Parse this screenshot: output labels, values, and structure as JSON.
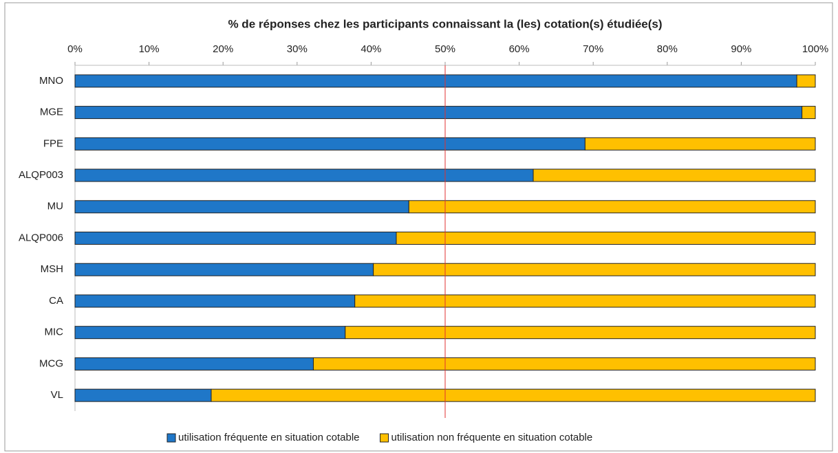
{
  "chart_data": {
    "type": "stacked_barh",
    "title": "% de réponses chez les participants connaissant la (les) cotation(s) étudiée(s)",
    "categories": [
      "MNO",
      "MGE",
      "FPE",
      "ALQP003",
      "MU",
      "ALQP006",
      "MSH",
      "CA",
      "MIC",
      "MCG",
      "VL"
    ],
    "series": [
      {
        "name": "utilisation fréquente en situation cotable",
        "color": "#1f77c8",
        "values": [
          97.5,
          98.2,
          68.9,
          61.9,
          45.1,
          43.4,
          40.3,
          37.8,
          36.5,
          32.2,
          18.4
        ]
      },
      {
        "name": "utilisation non fréquente en situation cotable",
        "color": "#ffc000",
        "values": [
          2.5,
          1.8,
          31.1,
          38.1,
          54.9,
          56.6,
          59.7,
          62.2,
          63.5,
          67.8,
          81.6
        ]
      }
    ],
    "xlim": [
      0,
      100
    ],
    "xticks": [
      {
        "value": 0,
        "label": "0%"
      },
      {
        "value": 10,
        "label": "10%"
      },
      {
        "value": 20,
        "label": "20%"
      },
      {
        "value": 30,
        "label": "30%"
      },
      {
        "value": 40,
        "label": "40%"
      },
      {
        "value": 50,
        "label": "50%"
      },
      {
        "value": 60,
        "label": "60%"
      },
      {
        "value": 70,
        "label": "70%"
      },
      {
        "value": 80,
        "label": "80%"
      },
      {
        "value": 90,
        "label": "90%"
      },
      {
        "value": 100,
        "label": "100%"
      }
    ],
    "reference_line": {
      "value": 50,
      "color": "#e03030"
    },
    "legend": "bottom"
  }
}
